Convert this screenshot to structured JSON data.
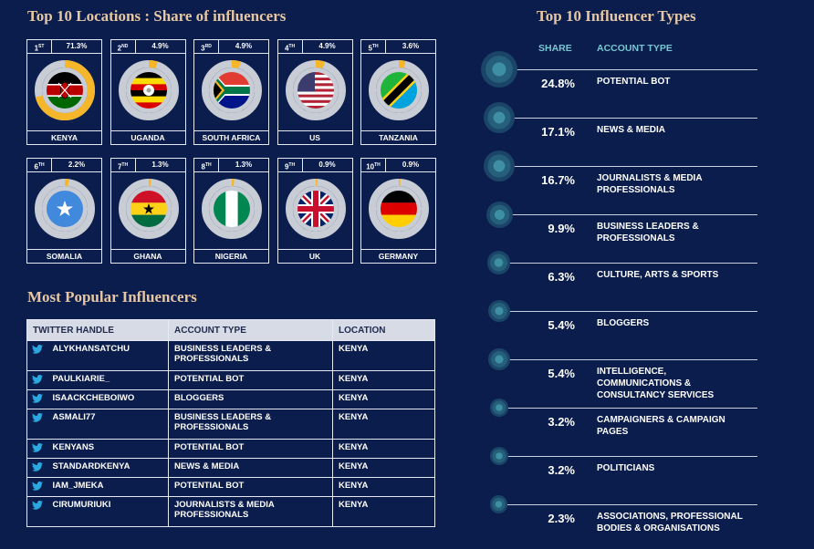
{
  "locations": {
    "title": "Top 10 Locations : Share of influencers",
    "items": [
      {
        "rank": "1",
        "suffix": "ST",
        "share": "71.3%",
        "value": 71.3,
        "country": "KENYA"
      },
      {
        "rank": "2",
        "suffix": "ND",
        "share": "4.9%",
        "value": 4.9,
        "country": "UGANDA"
      },
      {
        "rank": "3",
        "suffix": "RD",
        "share": "4.9%",
        "value": 4.9,
        "country": "SOUTH AFRICA"
      },
      {
        "rank": "4",
        "suffix": "TH",
        "share": "4.9%",
        "value": 4.9,
        "country": "US"
      },
      {
        "rank": "5",
        "suffix": "TH",
        "share": "3.6%",
        "value": 3.6,
        "country": "TANZANIA"
      },
      {
        "rank": "6",
        "suffix": "TH",
        "share": "2.2%",
        "value": 2.2,
        "country": "SOMALIA"
      },
      {
        "rank": "7",
        "suffix": "TH",
        "share": "1.3%",
        "value": 1.3,
        "country": "GHANA"
      },
      {
        "rank": "8",
        "suffix": "TH",
        "share": "1.3%",
        "value": 1.3,
        "country": "NIGERIA"
      },
      {
        "rank": "9",
        "suffix": "TH",
        "share": "0.9%",
        "value": 0.9,
        "country": "UK"
      },
      {
        "rank": "10",
        "suffix": "TH",
        "share": "0.9%",
        "value": 0.9,
        "country": "GERMANY"
      }
    ]
  },
  "influencers": {
    "title": "Most Popular Influencers",
    "columns": [
      "TWITTER HANDLE",
      "ACCOUNT TYPE",
      "LOCATION"
    ],
    "rows": [
      {
        "handle": "ALYKHANSATCHU",
        "type": "BUSINESS LEADERS & PROFESSIONALS",
        "location": "KENYA"
      },
      {
        "handle": "PAULKIARIE_",
        "type": "POTENTIAL BOT",
        "location": "KENYA"
      },
      {
        "handle": "ISAACKCHEBOIWO",
        "type": "BLOGGERS",
        "location": "KENYA"
      },
      {
        "handle": "ASMALI77",
        "type": "BUSINESS LEADERS & PROFESSIONALS",
        "location": "KENYA"
      },
      {
        "handle": "KENYANS",
        "type": "POTENTIAL BOT",
        "location": "KENYA"
      },
      {
        "handle": "STANDARDKENYA",
        "type": "NEWS & MEDIA",
        "location": "KENYA"
      },
      {
        "handle": "IAM_JMEKA",
        "type": "POTENTIAL BOT",
        "location": "KENYA"
      },
      {
        "handle": "CIRUMURIUKI",
        "type": "JOURNALISTS & MEDIA PROFESSIONALS",
        "location": "KENYA"
      }
    ]
  },
  "types": {
    "title": "Top 10 Influencer Types",
    "share_header": "SHARE",
    "type_header": "ACCOUNT TYPE"
  },
  "chart_data": {
    "type": "scatter",
    "title": "Top 10 Influencer Types",
    "categories": [
      "POTENTIAL BOT",
      "NEWS & MEDIA",
      "JOURNALISTS & MEDIA PROFESSIONALS",
      "BUSINESS LEADERS & PROFESSIONALS",
      "CULTURE, ARTS & SPORTS",
      "BLOGGERS",
      "INTELLIGENCE, COMMUNICATIONS & CONSULTANCY SERVICES",
      "CAMPAIGNERS & CAMPAIGN PAGES",
      "POLITICIANS",
      "ASSOCIATIONS, PROFESSIONAL BODIES & ORGANISATIONS"
    ],
    "values": [
      24.8,
      17.1,
      16.7,
      9.9,
      6.3,
      5.4,
      5.4,
      3.2,
      3.2,
      2.3
    ],
    "labels": [
      "24.8%",
      "17.1%",
      "16.7%",
      "9.9%",
      "6.3%",
      "5.4%",
      "5.4%",
      "3.2%",
      "3.2%",
      "2.3%"
    ]
  },
  "colors": {
    "background": "#0b1d4d",
    "title": "#e7c7a3",
    "accent": "#76c7d2",
    "donut_track": "#c8ccd4",
    "donut_fill": "#f6b62a",
    "twitter": "#2aa9e0"
  }
}
